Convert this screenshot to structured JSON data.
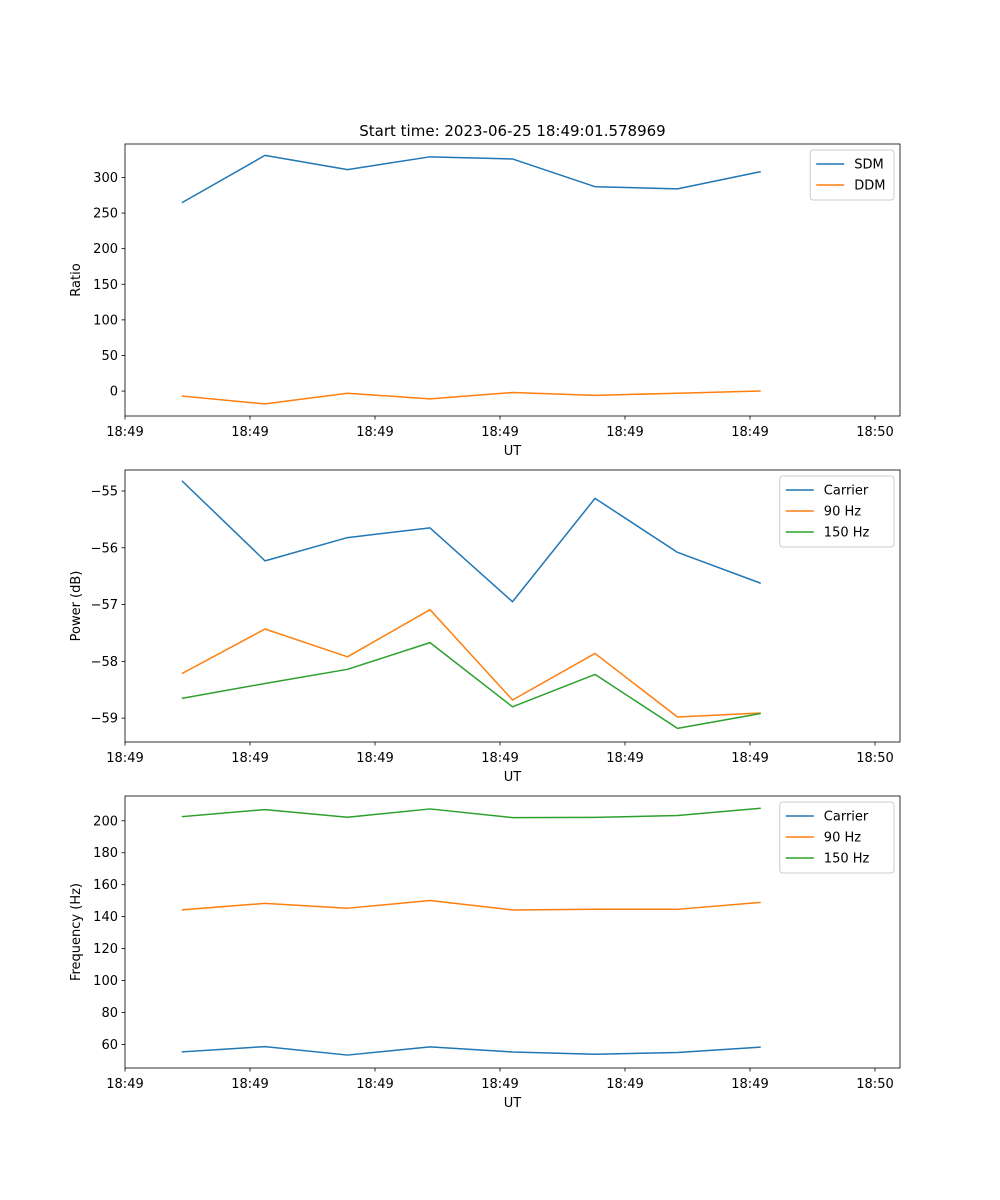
{
  "title": "Start time: 2023-06-25 18:49:01.578969",
  "colors": {
    "blue": "#1f77b4",
    "orange": "#ff7f0e",
    "green": "#2ca02c"
  },
  "chart_data": [
    {
      "type": "line",
      "xlabel": "UT",
      "ylabel": "Ratio",
      "xtick_labels": [
        "18:49",
        "18:49",
        "18:49",
        "18:49",
        "18:49",
        "18:49",
        "18:50"
      ],
      "ytick_values": [
        0,
        50,
        100,
        150,
        200,
        250,
        300
      ],
      "ytick_labels": [
        "0",
        "50",
        "100",
        "150",
        "200",
        "250",
        "300"
      ],
      "xlim": [
        0,
        3.1
      ],
      "ylim": [
        -35,
        347
      ],
      "x": [
        0.23,
        0.56,
        0.89,
        1.22,
        1.55,
        1.88,
        2.21,
        2.54
      ],
      "legend_position": "upper right",
      "series": [
        {
          "name": "SDM",
          "color": "#1f77b4",
          "values": [
            265,
            331,
            311,
            329,
            326,
            287,
            284,
            308
          ]
        },
        {
          "name": "DDM",
          "color": "#ff7f0e",
          "values": [
            -7,
            -18,
            -3,
            -11,
            -2,
            -6,
            -3,
            0
          ]
        }
      ]
    },
    {
      "type": "line",
      "xlabel": "UT",
      "ylabel": "Power (dB)",
      "xtick_labels": [
        "18:49",
        "18:49",
        "18:49",
        "18:49",
        "18:49",
        "18:49",
        "18:50"
      ],
      "ytick_values": [
        -59,
        -58,
        -57,
        -56,
        -55
      ],
      "ytick_labels": [
        "−59",
        "−58",
        "−57",
        "−56",
        "−55"
      ],
      "xlim": [
        0,
        3.1
      ],
      "ylim": [
        -59.42,
        -54.63
      ],
      "x": [
        0.23,
        0.56,
        0.89,
        1.22,
        1.55,
        1.88,
        2.21,
        2.54
      ],
      "legend_position": "upper right",
      "series": [
        {
          "name": "Carrier",
          "color": "#1f77b4",
          "values": [
            -54.83,
            -56.23,
            -55.82,
            -55.65,
            -56.95,
            -55.13,
            -56.08,
            -56.62
          ]
        },
        {
          "name": "90 Hz",
          "color": "#ff7f0e",
          "values": [
            -58.21,
            -57.43,
            -57.92,
            -57.09,
            -58.68,
            -57.86,
            -58.98,
            -58.91
          ]
        },
        {
          "name": "150 Hz",
          "color": "#2ca02c",
          "values": [
            -58.65,
            -58.39,
            -58.14,
            -57.67,
            -58.8,
            -58.23,
            -59.18,
            -58.92
          ]
        }
      ]
    },
    {
      "type": "line",
      "xlabel": "UT",
      "ylabel": "Frequency (Hz)",
      "xtick_labels": [
        "18:49",
        "18:49",
        "18:49",
        "18:49",
        "18:49",
        "18:49",
        "18:50"
      ],
      "ytick_values": [
        60,
        80,
        100,
        120,
        140,
        160,
        180,
        200
      ],
      "ytick_labels": [
        "60",
        "80",
        "100",
        "120",
        "140",
        "160",
        "180",
        "200"
      ],
      "xlim": [
        0,
        3.1
      ],
      "ylim": [
        45.3,
        215.5
      ],
      "x": [
        0.23,
        0.56,
        0.89,
        1.22,
        1.55,
        1.88,
        2.21,
        2.54
      ],
      "legend_position": "upper right",
      "series": [
        {
          "name": "Carrier",
          "color": "#1f77b4",
          "values": [
            55.4,
            58.7,
            53.4,
            58.5,
            55.3,
            53.9,
            55.0,
            58.3
          ]
        },
        {
          "name": "90 Hz",
          "color": "#ff7f0e",
          "values": [
            144.3,
            148.3,
            145.3,
            150.1,
            144.2,
            144.6,
            144.6,
            148.9
          ]
        },
        {
          "name": "150 Hz",
          "color": "#2ca02c",
          "values": [
            202.6,
            207.0,
            202.2,
            207.4,
            202.0,
            202.1,
            203.3,
            207.8
          ]
        }
      ]
    }
  ]
}
